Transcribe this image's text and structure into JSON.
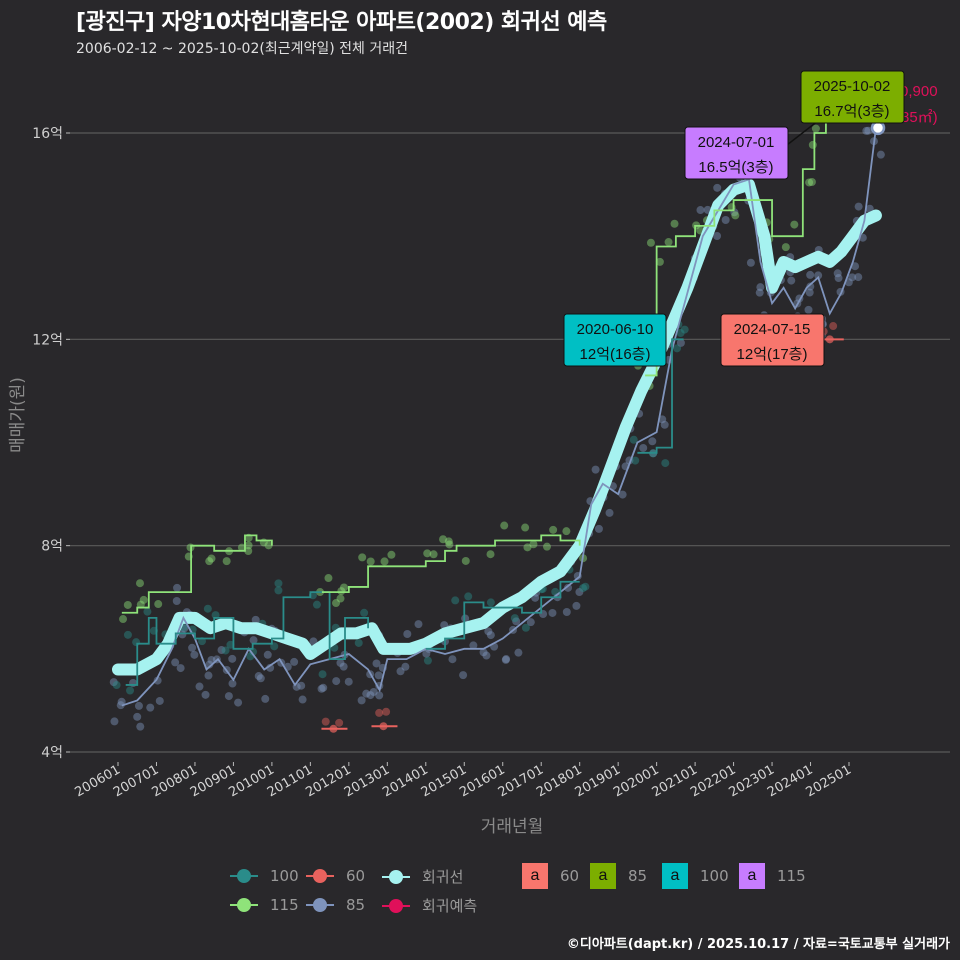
{
  "title": "[광진구] 자양10차현대홈타운 아파트(2002) 회귀선 예측",
  "subtitle": "2006-02-12 ~ 2025-10-02(최근계약일) 전체 거래건",
  "footer": "©디아파트(dapt.kr) / 2025.10.17 / 자료=국토교통부 실거래가",
  "colors": {
    "background": "#29282b",
    "area_60": "#e8625e",
    "area_85": "#7f94bd",
    "area_100": "#2a8c8a",
    "area_115": "#8fe37a",
    "regression": "#a6f2f0",
    "prediction": "#e0105a",
    "label_60": "#f8766d",
    "label_85": "#7cae00",
    "label_100": "#00bfc4",
    "label_115": "#c77cff"
  },
  "chart_data": {
    "type": "line",
    "title": "[광진구] 자양10차현대홈타운 아파트(2002) 회귀선 예측",
    "subtitle": "2006-02-12 ~ 2025-10-02(최근계약일) 전체 거래건",
    "xlabel": "거래년월",
    "ylabel": "매매가(원)",
    "y_unit": "억",
    "ylim": [
      3.9,
      17.0
    ],
    "yticks": [
      {
        "value": 4,
        "label": "4억"
      },
      {
        "value": 8,
        "label": "8억"
      },
      {
        "value": 12,
        "label": "12억"
      },
      {
        "value": 16,
        "label": "16억"
      }
    ],
    "xticks": [
      "200601",
      "200701",
      "200801",
      "200901",
      "201001",
      "201101",
      "201201",
      "201301",
      "201401",
      "201501",
      "201601",
      "201701",
      "201801",
      "201901",
      "202001",
      "202101",
      "202201",
      "202301",
      "202401",
      "202501"
    ],
    "grid": true,
    "legend_position": "bottom",
    "series": [
      {
        "name": "85",
        "color": "#7f94bd",
        "kind": "line",
        "x": [
          2006.1,
          2006.5,
          2007.0,
          2007.4,
          2007.7,
          2008.0,
          2008.3,
          2008.6,
          2009.0,
          2009.4,
          2009.8,
          2010.2,
          2010.6,
          2011.0,
          2011.5,
          2012.0,
          2012.5,
          2012.8,
          2013.0,
          2013.5,
          2014.0,
          2014.5,
          2015.0,
          2015.5,
          2016.0,
          2016.5,
          2017.0,
          2017.5,
          2018.0,
          2018.3,
          2018.6,
          2019.0,
          2019.5,
          2020.0,
          2020.4,
          2020.8,
          2021.2,
          2021.6,
          2022.0,
          2022.4,
          2022.7,
          2023.0,
          2023.3,
          2023.6,
          2023.9,
          2024.2,
          2024.5,
          2024.8,
          2025.1,
          2025.4,
          2025.7
        ],
        "y": [
          4.9,
          5.0,
          5.4,
          6.0,
          6.6,
          6.2,
          5.6,
          5.8,
          5.4,
          6.0,
          5.6,
          5.8,
          5.3,
          5.7,
          5.8,
          5.9,
          5.6,
          5.2,
          5.8,
          5.8,
          6.0,
          5.9,
          6.0,
          6.0,
          6.2,
          6.5,
          6.8,
          7.1,
          7.4,
          8.8,
          9.2,
          9.0,
          10.0,
          10.2,
          11.8,
          12.9,
          14.0,
          14.5,
          15.0,
          15.1,
          13.5,
          12.7,
          13.0,
          12.6,
          13.0,
          13.2,
          12.5,
          12.9,
          13.5,
          14.3,
          16.1
        ]
      },
      {
        "name": "100",
        "color": "#2a8c8a",
        "kind": "step",
        "x": [
          2006.2,
          2006.5,
          2006.8,
          2007.0,
          2007.5,
          2008.0,
          2008.5,
          2009.0,
          2009.5,
          2010.0,
          2010.3,
          2011.0,
          2011.5,
          2011.9,
          2012.5,
          2014.0,
          2014.5,
          2015.0,
          2015.5,
          2016.5,
          2017.0,
          2017.5,
          2018.0,
          2019.5,
          2020.0,
          2020.4,
          2020.7
        ],
        "y": [
          5.3,
          6.1,
          6.6,
          6.1,
          6.3,
          6.2,
          6.6,
          6.0,
          6.1,
          6.2,
          7.0,
          7.1,
          5.8,
          6.6,
          6.4,
          6.0,
          6.2,
          6.9,
          6.8,
          6.7,
          7.0,
          7.3,
          7.3,
          9.8,
          9.9,
          12.0,
          12.0
        ]
      },
      {
        "name": "115",
        "color": "#8fe37a",
        "kind": "step",
        "x": [
          2006.1,
          2006.5,
          2006.8,
          2007.9,
          2008.5,
          2009.0,
          2009.3,
          2009.6,
          2010.0,
          2011.3,
          2011.6,
          2012.0,
          2012.5,
          2013.0,
          2014.0,
          2014.5,
          2014.8,
          2015.8,
          2016.5,
          2017.0,
          2017.5,
          2018.0,
          2019.7,
          2020.0,
          2020.5,
          2021.0,
          2021.5,
          2022.0,
          2023.0,
          2023.5,
          2023.8,
          2024.1,
          2024.4,
          2025.0
        ],
        "y": [
          6.7,
          6.8,
          7.1,
          8.0,
          7.9,
          7.9,
          8.2,
          8.1,
          8.0,
          7.1,
          7.1,
          7.2,
          7.6,
          7.6,
          7.7,
          7.9,
          8.0,
          8.1,
          8.1,
          8.2,
          8.1,
          8.0,
          11.3,
          13.8,
          14.0,
          14.2,
          14.5,
          14.7,
          14.0,
          14.0,
          15.3,
          16.0,
          16.5,
          16.7
        ]
      },
      {
        "name": "60",
        "color": "#e8625e",
        "kind": "segments",
        "x": [
          2011.6,
          2012.9,
          2024.5
        ],
        "y": [
          4.45,
          4.5,
          12.0
        ]
      },
      {
        "name": "회귀선",
        "color": "#a6f2f0",
        "kind": "regression",
        "x": [
          2006.0,
          2006.5,
          2007.0,
          2007.3,
          2007.6,
          2008.0,
          2008.4,
          2008.8,
          2009.2,
          2009.6,
          2010.0,
          2010.4,
          2010.8,
          2011.0,
          2011.4,
          2011.8,
          2012.2,
          2012.6,
          2012.9,
          2013.2,
          2013.6,
          2014.0,
          2014.5,
          2015.0,
          2015.5,
          2016.0,
          2016.5,
          2017.0,
          2017.5,
          2018.0,
          2018.4,
          2018.8,
          2019.2,
          2019.6,
          2020.0,
          2020.4,
          2020.8,
          2021.2,
          2021.6,
          2022.0,
          2022.4,
          2022.8,
          2022.9,
          2023.0,
          2023.3,
          2023.6,
          2023.9,
          2024.2,
          2024.5,
          2024.8,
          2025.1,
          2025.4,
          2025.7
        ],
        "y": [
          5.6,
          5.6,
          5.8,
          6.1,
          6.6,
          6.6,
          6.4,
          6.5,
          6.4,
          6.4,
          6.3,
          6.2,
          6.1,
          5.9,
          6.1,
          6.3,
          6.3,
          6.4,
          6.0,
          6.0,
          6.0,
          6.1,
          6.3,
          6.4,
          6.5,
          6.8,
          7.0,
          7.3,
          7.5,
          8.0,
          8.7,
          9.5,
          10.3,
          11.0,
          11.6,
          12.3,
          13.0,
          13.8,
          14.6,
          14.9,
          15.0,
          14.0,
          13.5,
          13.0,
          13.5,
          13.4,
          13.5,
          13.6,
          13.5,
          13.7,
          14.0,
          14.3,
          14.4
        ]
      },
      {
        "name": "회귀예측",
        "color": "#e0105a",
        "kind": "prediction",
        "x": [
          2025.8
        ],
        "y": [
          16.1
        ]
      }
    ],
    "annotations": [
      {
        "date": "2025-10-02",
        "text": "16.7억(3층)",
        "area": "85",
        "color": "#7cae00"
      },
      {
        "date": "2024-07-01",
        "text": "16.5억(3층)",
        "area": "115",
        "color": "#c77cff"
      },
      {
        "date": "2020-06-10",
        "text": "12억(16층)",
        "area": "100",
        "color": "#00bfc4"
      },
      {
        "date": "2024-07-15",
        "text": "12억(17층)",
        "area": "60",
        "color": "#f8766d"
      }
    ],
    "prediction_label": {
      "line1": "0,900",
      "line2": "85㎡)",
      "note": "partially hidden behind annotation box"
    }
  },
  "axes": {
    "xlabel": "거래년월",
    "ylabel": "매매가(원)",
    "yticks": [
      "4억",
      "8억",
      "12억",
      "16억"
    ]
  },
  "annotations": {
    "a1": {
      "line1": "2025-10-02",
      "line2": "16.7억(3층)"
    },
    "a2": {
      "line1": "2024-07-01",
      "line2": "16.5억(3층)"
    },
    "a3": {
      "line1": "2020-06-10",
      "line2": "12억(16층)"
    },
    "a4": {
      "line1": "2024-07-15",
      "line2": "12억(17층)"
    },
    "pred1": "0,900",
    "pred2": "85㎡)"
  },
  "legend": {
    "lines": [
      {
        "label": "100",
        "color": "#2a8c8a"
      },
      {
        "label": "60",
        "color": "#e8625e"
      },
      {
        "label": "회귀선",
        "color": "#a6f2f0"
      },
      {
        "label": "115",
        "color": "#8fe37a"
      },
      {
        "label": "85",
        "color": "#7f94bd"
      },
      {
        "label": "회귀예측",
        "color": "#e0105a"
      }
    ],
    "boxes": [
      {
        "glyph": "a",
        "label": "60",
        "color": "#f8766d"
      },
      {
        "glyph": "a",
        "label": "85",
        "color": "#7cae00"
      },
      {
        "glyph": "a",
        "label": "100",
        "color": "#00bfc4"
      },
      {
        "glyph": "a",
        "label": "115",
        "color": "#c77cff"
      }
    ]
  }
}
